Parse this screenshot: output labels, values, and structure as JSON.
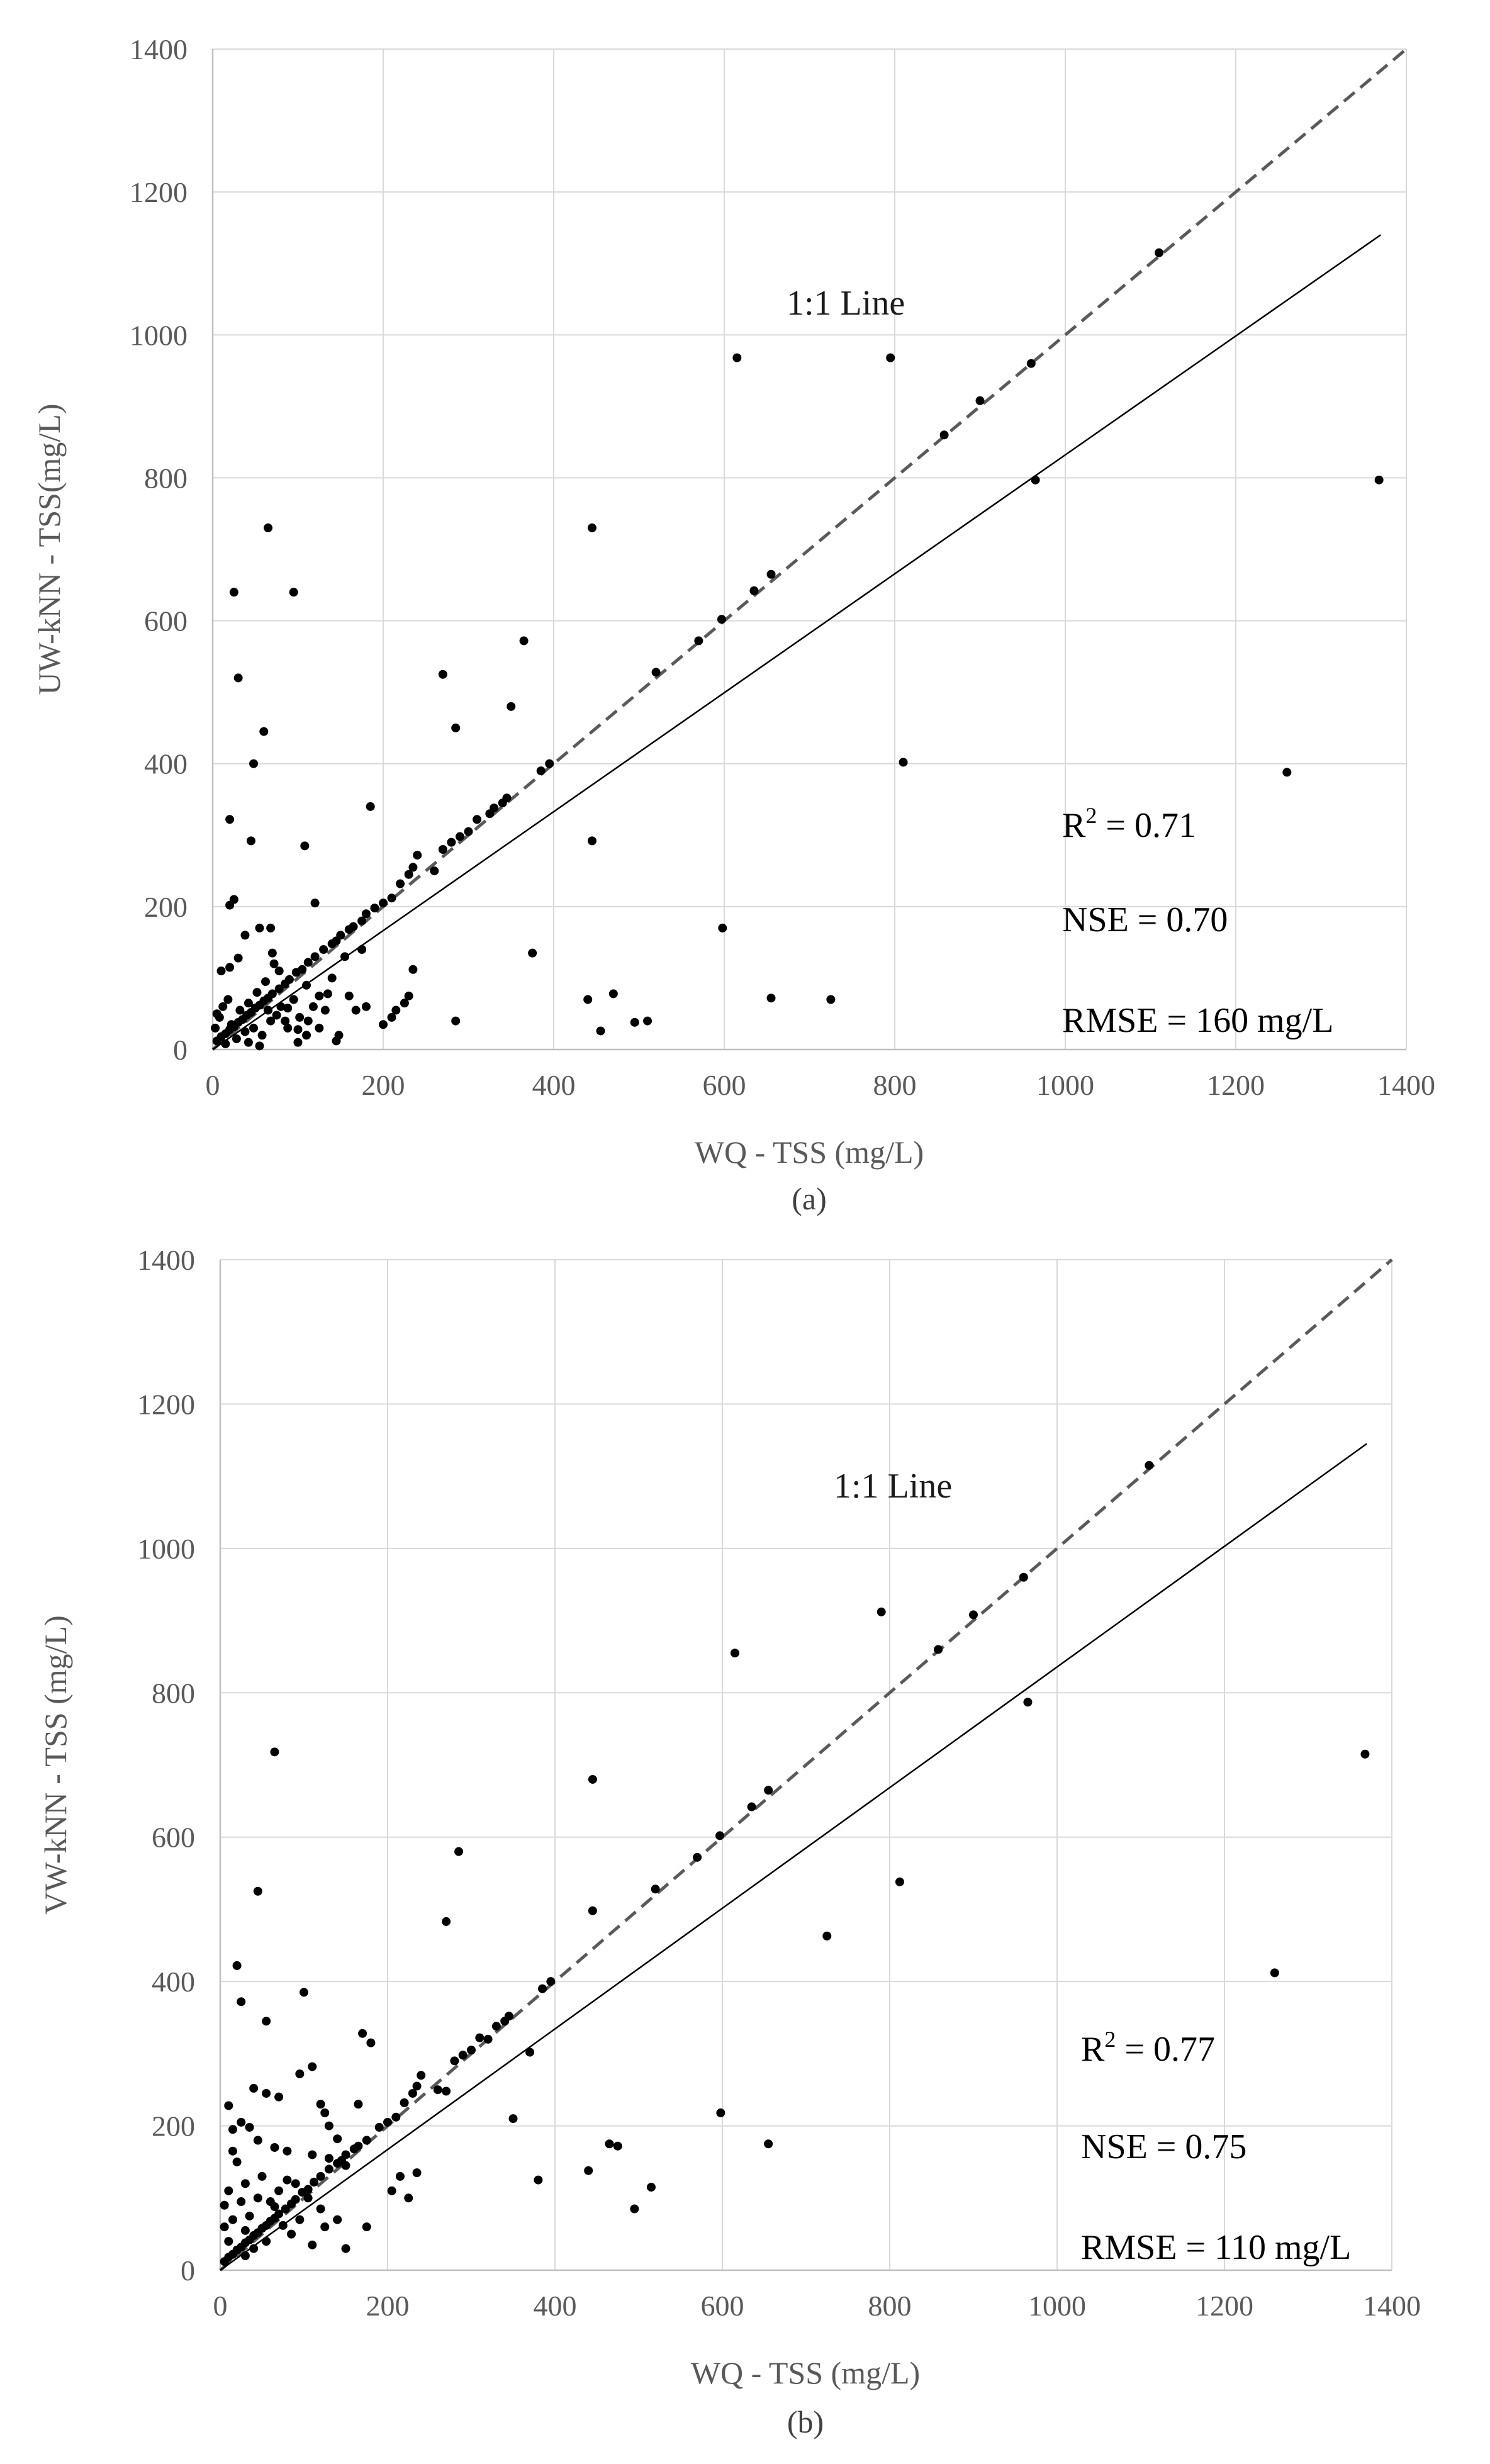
{
  "chart_data": [
    {
      "type": "scatter",
      "panel": "a",
      "caption": "(a)",
      "xlabel": "WQ - TSS (mg/L)",
      "ylabel": "UW-kNN - TSS(mg/L)",
      "xlim": [
        0,
        1400
      ],
      "ylim": [
        0,
        1400
      ],
      "xticks": [
        "0",
        "200",
        "400",
        "600",
        "800",
        "1000",
        "1200",
        "1400"
      ],
      "yticks": [
        "0",
        "200",
        "400",
        "600",
        "800",
        "1000",
        "1200",
        "1400"
      ],
      "one_to_one_label": "1:1 Line",
      "one_to_one": [
        [
          0,
          0
        ],
        [
          1400,
          1400
        ]
      ],
      "fit_line": [
        [
          0,
          0
        ],
        [
          1370,
          1140
        ]
      ],
      "stats": {
        "r2_prefix": "R",
        "r2_sup": "2",
        "r2_value": " = 0.71",
        "nse": "NSE = 0.70",
        "rmse": "RMSE = 160 mg/L"
      },
      "points": [
        [
          1110,
          1115
        ],
        [
          960,
          960
        ],
        [
          900,
          908
        ],
        [
          858,
          860
        ],
        [
          965,
          797
        ],
        [
          1368,
          797
        ],
        [
          810,
          402
        ],
        [
          1260,
          388
        ],
        [
          615,
          968
        ],
        [
          795,
          968
        ],
        [
          655,
          665
        ],
        [
          635,
          642
        ],
        [
          597,
          602
        ],
        [
          570,
          572
        ],
        [
          520,
          528
        ],
        [
          445,
          730
        ],
        [
          445,
          292
        ],
        [
          598,
          170
        ],
        [
          655,
          72
        ],
        [
          725,
          70
        ],
        [
          440,
          70
        ],
        [
          470,
          78
        ],
        [
          455,
          26
        ],
        [
          495,
          38
        ],
        [
          510,
          40
        ],
        [
          395,
          400
        ],
        [
          385,
          390
        ],
        [
          365,
          572
        ],
        [
          350,
          480
        ],
        [
          345,
          352
        ],
        [
          340,
          345
        ],
        [
          330,
          338
        ],
        [
          325,
          330
        ],
        [
          310,
          322
        ],
        [
          300,
          305
        ],
        [
          290,
          298
        ],
        [
          285,
          450
        ],
        [
          280,
          290
        ],
        [
          270,
          525
        ],
        [
          270,
          280
        ],
        [
          260,
          250
        ],
        [
          375,
          135
        ],
        [
          240,
          272
        ],
        [
          235,
          255
        ],
        [
          230,
          245
        ],
        [
          220,
          232
        ],
        [
          210,
          212
        ],
        [
          200,
          205
        ],
        [
          190,
          198
        ],
        [
          185,
          340
        ],
        [
          180,
          190
        ],
        [
          175,
          180
        ],
        [
          165,
          172
        ],
        [
          160,
          168
        ],
        [
          150,
          160
        ],
        [
          145,
          152
        ],
        [
          140,
          148
        ],
        [
          130,
          140
        ],
        [
          120,
          130
        ],
        [
          112,
          122
        ],
        [
          105,
          112
        ],
        [
          98,
          108
        ],
        [
          90,
          98
        ],
        [
          85,
          92
        ],
        [
          78,
          85
        ],
        [
          70,
          78
        ],
        [
          65,
          72
        ],
        [
          60,
          68
        ],
        [
          55,
          62
        ],
        [
          50,
          58
        ],
        [
          45,
          52
        ],
        [
          40,
          48
        ],
        [
          35,
          42
        ],
        [
          30,
          38
        ],
        [
          25,
          32
        ],
        [
          20,
          28
        ],
        [
          15,
          22
        ],
        [
          10,
          18
        ],
        [
          5,
          12
        ],
        [
          8,
          45
        ],
        [
          12,
          60
        ],
        [
          18,
          70
        ],
        [
          22,
          35
        ],
        [
          28,
          15
        ],
        [
          32,
          55
        ],
        [
          38,
          25
        ],
        [
          42,
          65
        ],
        [
          48,
          30
        ],
        [
          52,
          80
        ],
        [
          58,
          20
        ],
        [
          62,
          95
        ],
        [
          68,
          40
        ],
        [
          72,
          120
        ],
        [
          80,
          60
        ],
        [
          88,
          30
        ],
        [
          95,
          70
        ],
        [
          102,
          45
        ],
        [
          110,
          90
        ],
        [
          118,
          60
        ],
        [
          125,
          75
        ],
        [
          132,
          55
        ],
        [
          140,
          100
        ],
        [
          148,
          20
        ],
        [
          155,
          130
        ],
        [
          160,
          75
        ],
        [
          168,
          55
        ],
        [
          175,
          140
        ],
        [
          25,
          640
        ],
        [
          65,
          730
        ],
        [
          95,
          640
        ],
        [
          30,
          520
        ],
        [
          60,
          445
        ],
        [
          48,
          400
        ],
        [
          20,
          322
        ],
        [
          45,
          292
        ],
        [
          108,
          285
        ],
        [
          25,
          210
        ],
        [
          20,
          202
        ],
        [
          120,
          205
        ],
        [
          55,
          170
        ],
        [
          68,
          170
        ],
        [
          38,
          160
        ],
        [
          30,
          128
        ],
        [
          20,
          115
        ],
        [
          10,
          110
        ],
        [
          5,
          50
        ],
        [
          3,
          30
        ],
        [
          15,
          8
        ],
        [
          42,
          10
        ],
        [
          55,
          5
        ],
        [
          100,
          10
        ],
        [
          145,
          12
        ],
        [
          70,
          135
        ],
        [
          78,
          110
        ],
        [
          88,
          58
        ],
        [
          112,
          40
        ],
        [
          125,
          30
        ],
        [
          135,
          78
        ],
        [
          235,
          112
        ],
        [
          215,
          55
        ],
        [
          225,
          65
        ],
        [
          230,
          75
        ],
        [
          285,
          40
        ],
        [
          210,
          45
        ],
        [
          200,
          35
        ],
        [
          180,
          60
        ],
        [
          65,
          55
        ],
        [
          75,
          48
        ],
        [
          85,
          40
        ],
        [
          100,
          28
        ],
        [
          110,
          20
        ]
      ]
    },
    {
      "type": "scatter",
      "panel": "b",
      "caption": "(b)",
      "xlabel": "WQ - TSS (mg/L)",
      "ylabel": "VW-kNN - TSS (mg/L)",
      "xlim": [
        0,
        1400
      ],
      "ylim": [
        0,
        1400
      ],
      "xticks": [
        "0",
        "200",
        "400",
        "600",
        "800",
        "1000",
        "1200",
        "1400"
      ],
      "yticks": [
        "0",
        "200",
        "400",
        "600",
        "800",
        "1000",
        "1200",
        "1400"
      ],
      "one_to_one_label": "1:1 Line",
      "one_to_one": [
        [
          0,
          0
        ],
        [
          1400,
          1400
        ]
      ],
      "fit_line": [
        [
          0,
          0
        ],
        [
          1370,
          1145
        ]
      ],
      "stats": {
        "r2_prefix": "R",
        "r2_sup": "2",
        "r2_value": " = 0.77",
        "nse": "NSE = 0.75",
        "rmse": "RMSE = 110 mg/L"
      },
      "points": [
        [
          1110,
          1115
        ],
        [
          960,
          960
        ],
        [
          900,
          908
        ],
        [
          858,
          860
        ],
        [
          790,
          912
        ],
        [
          965,
          787
        ],
        [
          1368,
          715
        ],
        [
          1260,
          412
        ],
        [
          615,
          855
        ],
        [
          812,
          538
        ],
        [
          725,
          463
        ],
        [
          655,
          665
        ],
        [
          635,
          642
        ],
        [
          597,
          602
        ],
        [
          570,
          572
        ],
        [
          520,
          528
        ],
        [
          445,
          680
        ],
        [
          445,
          498
        ],
        [
          598,
          218
        ],
        [
          655,
          175
        ],
        [
          465,
          175
        ],
        [
          475,
          172
        ],
        [
          515,
          115
        ],
        [
          495,
          85
        ],
        [
          440,
          138
        ],
        [
          395,
          400
        ],
        [
          385,
          390
        ],
        [
          370,
          302
        ],
        [
          350,
          210
        ],
        [
          345,
          352
        ],
        [
          340,
          345
        ],
        [
          330,
          338
        ],
        [
          320,
          320
        ],
        [
          310,
          322
        ],
        [
          300,
          305
        ],
        [
          290,
          298
        ],
        [
          285,
          580
        ],
        [
          280,
          290
        ],
        [
          270,
          483
        ],
        [
          270,
          248
        ],
        [
          260,
          250
        ],
        [
          380,
          125
        ],
        [
          240,
          270
        ],
        [
          235,
          255
        ],
        [
          230,
          245
        ],
        [
          220,
          232
        ],
        [
          210,
          212
        ],
        [
          200,
          205
        ],
        [
          190,
          198
        ],
        [
          180,
          315
        ],
        [
          170,
          328
        ],
        [
          175,
          180
        ],
        [
          165,
          172
        ],
        [
          160,
          168
        ],
        [
          150,
          160
        ],
        [
          145,
          152
        ],
        [
          140,
          148
        ],
        [
          130,
          140
        ],
        [
          120,
          130
        ],
        [
          112,
          122
        ],
        [
          105,
          112
        ],
        [
          98,
          108
        ],
        [
          90,
          98
        ],
        [
          85,
          92
        ],
        [
          78,
          85
        ],
        [
          70,
          78
        ],
        [
          65,
          72
        ],
        [
          60,
          68
        ],
        [
          55,
          62
        ],
        [
          50,
          58
        ],
        [
          45,
          52
        ],
        [
          40,
          48
        ],
        [
          35,
          42
        ],
        [
          30,
          38
        ],
        [
          25,
          32
        ],
        [
          20,
          28
        ],
        [
          15,
          22
        ],
        [
          10,
          18
        ],
        [
          5,
          12
        ],
        [
          65,
          718
        ],
        [
          45,
          525
        ],
        [
          20,
          422
        ],
        [
          25,
          372
        ],
        [
          55,
          345
        ],
        [
          100,
          385
        ],
        [
          110,
          282
        ],
        [
          95,
          272
        ],
        [
          70,
          240
        ],
        [
          40,
          252
        ],
        [
          55,
          245
        ],
        [
          25,
          205
        ],
        [
          35,
          198
        ],
        [
          10,
          228
        ],
        [
          15,
          195
        ],
        [
          65,
          170
        ],
        [
          80,
          165
        ],
        [
          120,
          230
        ],
        [
          125,
          218
        ],
        [
          130,
          200
        ],
        [
          140,
          182
        ],
        [
          110,
          160
        ],
        [
          130,
          155
        ],
        [
          150,
          145
        ],
        [
          165,
          230
        ],
        [
          175,
          60
        ],
        [
          105,
          100
        ],
        [
          120,
          85
        ],
        [
          140,
          70
        ],
        [
          150,
          30
        ],
        [
          125,
          60
        ],
        [
          110,
          35
        ],
        [
          90,
          120
        ],
        [
          80,
          125
        ],
        [
          70,
          110
        ],
        [
          60,
          95
        ],
        [
          50,
          130
        ],
        [
          45,
          100
        ],
        [
          30,
          120
        ],
        [
          20,
          150
        ],
        [
          10,
          110
        ],
        [
          5,
          90
        ],
        [
          5,
          60
        ],
        [
          10,
          40
        ],
        [
          15,
          70
        ],
        [
          25,
          95
        ],
        [
          35,
          75
        ],
        [
          30,
          55
        ],
        [
          40,
          30
        ],
        [
          55,
          40
        ],
        [
          65,
          88
        ],
        [
          75,
          62
        ],
        [
          85,
          50
        ],
        [
          95,
          70
        ],
        [
          15,
          165
        ],
        [
          45,
          180
        ],
        [
          205,
          110
        ],
        [
          215,
          130
        ],
        [
          225,
          100
        ],
        [
          235,
          135
        ],
        [
          30,
          20
        ]
      ]
    }
  ]
}
